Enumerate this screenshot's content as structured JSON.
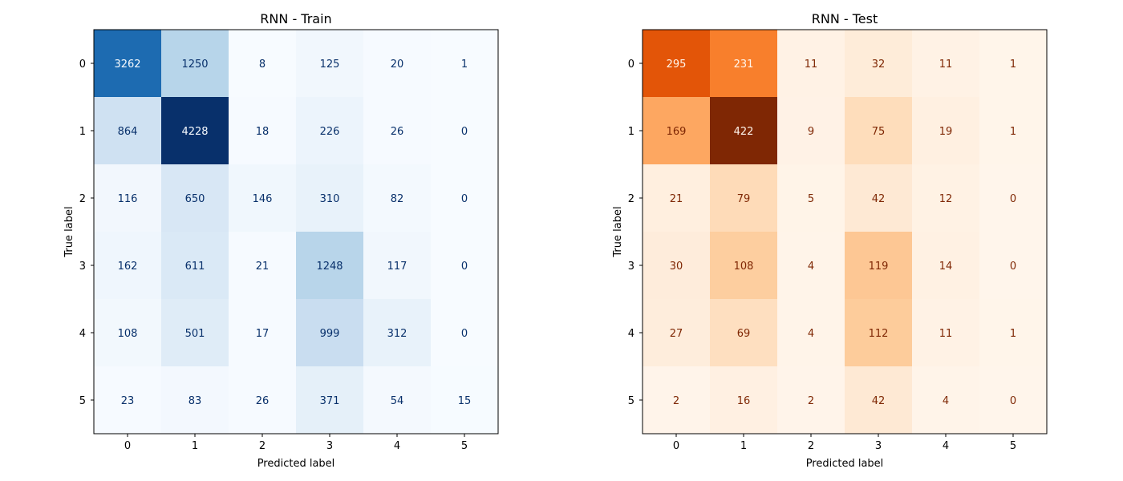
{
  "chart_data": [
    {
      "type": "heatmap",
      "title": "RNN - Train",
      "xlabel": "Predicted label",
      "ylabel": "True label",
      "x_ticks": [
        "0",
        "1",
        "2",
        "3",
        "4",
        "5"
      ],
      "y_ticks": [
        "0",
        "1",
        "2",
        "3",
        "4",
        "5"
      ],
      "colormap": "Blues",
      "color_low": "#f7fbff",
      "color_high": "#08306b",
      "text_dark": "#08306b",
      "text_light": "#f7fbff",
      "values": [
        [
          3262,
          1250,
          8,
          125,
          20,
          1
        ],
        [
          864,
          4228,
          18,
          226,
          26,
          0
        ],
        [
          116,
          650,
          146,
          310,
          82,
          0
        ],
        [
          162,
          611,
          21,
          1248,
          117,
          0
        ],
        [
          108,
          501,
          17,
          999,
          312,
          0
        ],
        [
          23,
          83,
          26,
          371,
          54,
          15
        ]
      ]
    },
    {
      "type": "heatmap",
      "title": "RNN - Test",
      "xlabel": "Predicted label",
      "ylabel": "True label",
      "x_ticks": [
        "0",
        "1",
        "2",
        "3",
        "4",
        "5"
      ],
      "y_ticks": [
        "0",
        "1",
        "2",
        "3",
        "4",
        "5"
      ],
      "colormap": "Oranges",
      "color_low": "#fff5eb",
      "color_high": "#7f2704",
      "text_dark": "#7f2704",
      "text_light": "#fff5eb",
      "values": [
        [
          295,
          231,
          11,
          32,
          11,
          1
        ],
        [
          169,
          422,
          9,
          75,
          19,
          1
        ],
        [
          21,
          79,
          5,
          42,
          12,
          0
        ],
        [
          30,
          108,
          4,
          119,
          14,
          0
        ],
        [
          27,
          69,
          4,
          112,
          11,
          1
        ],
        [
          2,
          16,
          2,
          42,
          4,
          0
        ]
      ]
    }
  ]
}
